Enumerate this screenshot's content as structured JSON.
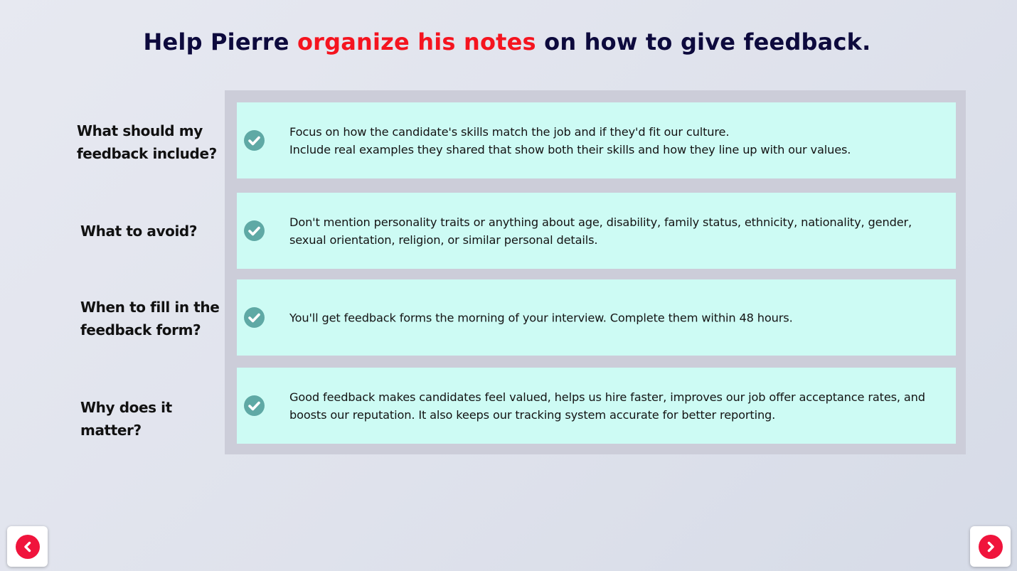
{
  "title": {
    "part1": "Help Pierre ",
    "accent": "organize his notes",
    "part2": " on how to give feedback."
  },
  "rows": [
    {
      "label_lines": [
        "What should my",
        "feedback include?"
      ],
      "text_lines": [
        "Focus on how the candidate's skills match the job and if they'd fit our culture.",
        "Include real examples they shared that show both their skills and how they line up with our values."
      ]
    },
    {
      "label_lines": [
        "What to avoid?"
      ],
      "text_lines": [
        "Don't mention personality traits or anything about age, disability, family status, ethnicity, nationality, gender,",
        "sexual orientation, religion, or similar personal details."
      ]
    },
    {
      "label_lines": [
        "When to fill in the",
        "feedback form?"
      ],
      "text_lines": [
        "You'll get feedback forms the morning of your interview. Complete them within 48 hours."
      ]
    },
    {
      "label_lines": [
        "Why does it matter?"
      ],
      "text_lines": [
        "Good feedback makes candidates feel valued, helps us hire faster, improves our job offer acceptance rates, and",
        "boosts our reputation. It also keeps our tracking system accurate for better reporting."
      ]
    }
  ],
  "icons": {
    "check": "check-circle-icon",
    "prev": "chevron-left-icon",
    "next": "chevron-right-icon"
  },
  "colors": {
    "title": "#0d0a3d",
    "accent": "#f5141f",
    "card": "#cdfbf4",
    "panel": "#cccdd9",
    "check": "#5fa9a5",
    "nav": "#f0143c"
  }
}
